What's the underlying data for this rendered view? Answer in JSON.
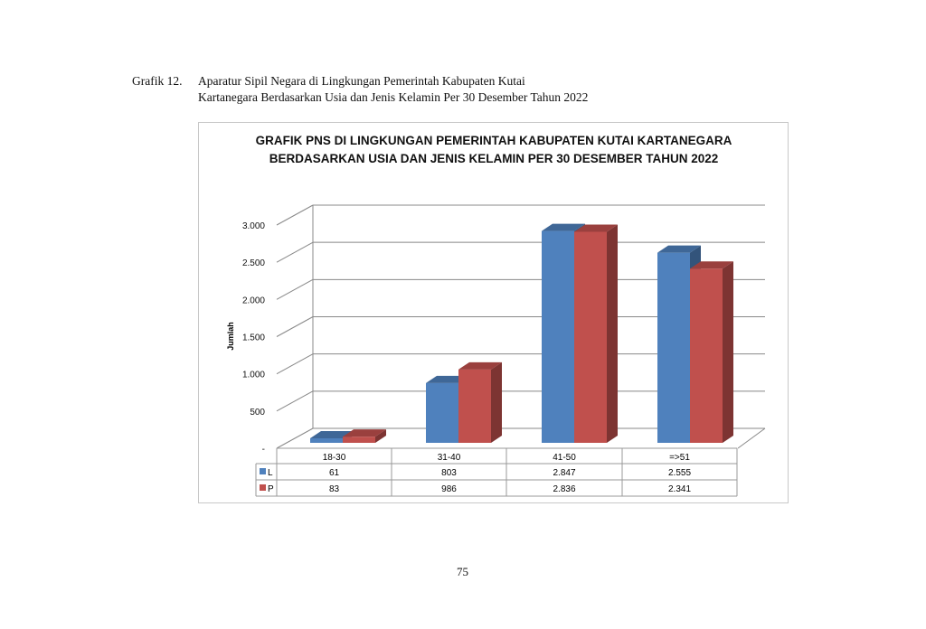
{
  "caption": {
    "label": "Grafik 12.",
    "line1": "Aparatur Sipil Negara di Lingkungan Pemerintah Kabupaten Kutai",
    "line2": "Kartanegara Berdasarkan Usia dan Jenis Kelamin Per 30 Desember Tahun 2022"
  },
  "page_number": "75",
  "chart_data": {
    "type": "bar",
    "title": [
      "GRAFIK PNS DI LINGKUNGAN PEMERINTAH KABUPATEN KUTAI KARTANEGARA",
      "BERDASARKAN USIA DAN JENIS KELAMIN PER 30 DESEMBER TAHUN 2022"
    ],
    "ylabel": "Jumlah",
    "xlabel": "",
    "ylim": [
      0,
      3000
    ],
    "yticks": [
      0,
      500,
      1000,
      1500,
      2000,
      2500,
      3000
    ],
    "ytick_labels": [
      "-",
      "500",
      "1.000",
      "1.500",
      "2.000",
      "2.500",
      "3.000"
    ],
    "categories": [
      "18-30",
      "31-40",
      "41-50",
      "=>51"
    ],
    "series": [
      {
        "name": "L",
        "color": "#4f81bd",
        "values": [
          61,
          803,
          2847,
          2555
        ],
        "labels": [
          "61",
          "803",
          "2.847",
          "2.555"
        ]
      },
      {
        "name": "P",
        "color": "#c0504d",
        "values": [
          83,
          986,
          2836,
          2341
        ],
        "labels": [
          "83",
          "986",
          "2.836",
          "2.341"
        ]
      }
    ],
    "grid": true,
    "legend": "data-table",
    "style": "3d-clustered-column"
  }
}
